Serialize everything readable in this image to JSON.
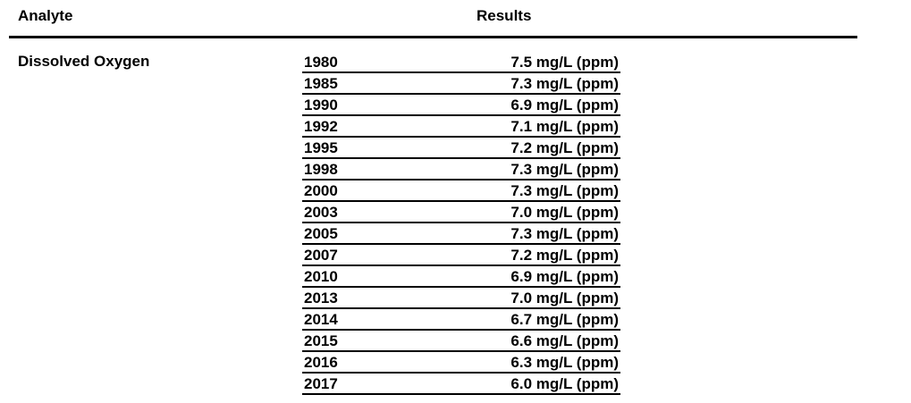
{
  "table": {
    "headers": {
      "analyte": "Analyte",
      "results": "Results"
    },
    "rows": [
      {
        "analyte": "Dissolved Oxygen",
        "results": [
          {
            "year": "1980",
            "value": "7.5 mg/L (ppm)"
          },
          {
            "year": "1985",
            "value": "7.3 mg/L (ppm)"
          },
          {
            "year": "1990",
            "value": "6.9 mg/L (ppm)"
          },
          {
            "year": "1992",
            "value": "7.1 mg/L (ppm)"
          },
          {
            "year": "1995",
            "value": "7.2 mg/L (ppm)"
          },
          {
            "year": "1998",
            "value": "7.3 mg/L (ppm)"
          },
          {
            "year": "2000",
            "value": "7.3 mg/L (ppm)"
          },
          {
            "year": "2003",
            "value": "7.0 mg/L (ppm)"
          },
          {
            "year": "2005",
            "value": "7.3 mg/L (ppm)"
          },
          {
            "year": "2007",
            "value": "7.2 mg/L (ppm)"
          },
          {
            "year": "2010",
            "value": "6.9 mg/L (ppm)"
          },
          {
            "year": "2013",
            "value": "7.0 mg/L (ppm)"
          },
          {
            "year": "2014",
            "value": "6.7 mg/L (ppm)"
          },
          {
            "year": "2015",
            "value": "6.6 mg/L (ppm)"
          },
          {
            "year": "2016",
            "value": "6.3 mg/L (ppm)"
          },
          {
            "year": "2017",
            "value": "6.0 mg/L (ppm)"
          }
        ]
      }
    ]
  }
}
